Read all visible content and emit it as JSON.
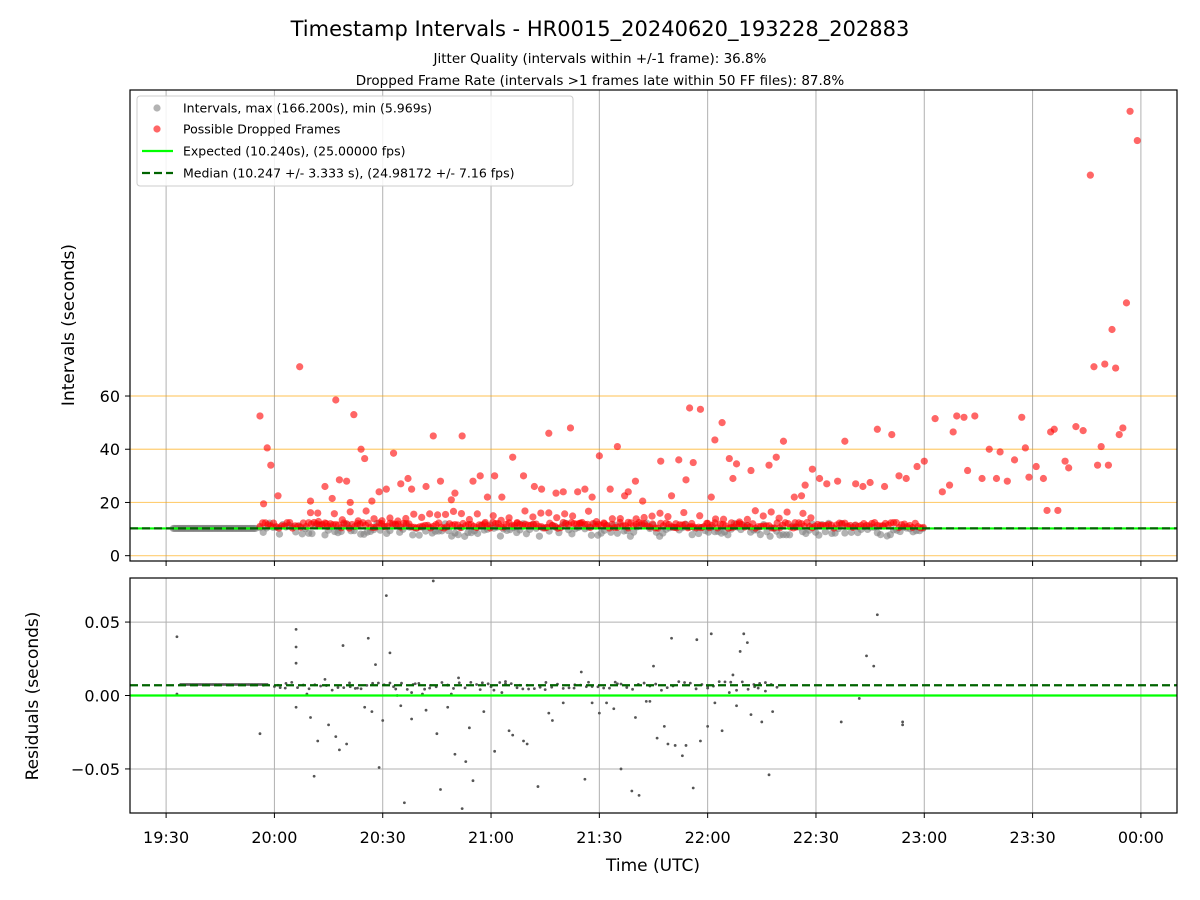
{
  "figure": {
    "title": "Timestamp Intervals - HR0015_20240620_193228_202883",
    "subtitle1": "Jitter Quality (intervals within +/-1 frame): 36.8%",
    "subtitle2": "Dropped Frame Rate (intervals >1 frames late within 50 FF files): 87.8%",
    "xlabel": "Time (UTC)"
  },
  "chart_data": [
    {
      "type": "scatter",
      "panel": "top",
      "ylabel": "Intervals (seconds)",
      "x_domain": [
        "19:20",
        "00:10"
      ],
      "ylim": [
        -2,
        175
      ],
      "yticks": [
        0,
        20,
        40,
        60
      ],
      "xticks": [
        "19:30",
        "20:00",
        "20:30",
        "21:00",
        "21:30",
        "22:00",
        "22:30",
        "23:00",
        "23:30",
        "00:00"
      ],
      "hlines": [
        0,
        20,
        40,
        60
      ],
      "grid": true,
      "legend_position": "upper-left",
      "legend": {
        "intervals": "Intervals, max (166.200s), min (5.969s)",
        "dropped": "Possible Dropped Frames",
        "expected": "Expected (10.240s), (25.00000 fps)",
        "median": "Median (10.247 +/- 3.333 s), (24.98172 +/- 7.16 fps)"
      },
      "expected_value": 10.24,
      "median_value": 10.247,
      "dropped_points": [
        [
          "19:56",
          52.5
        ],
        [
          "19:57",
          19.5
        ],
        [
          "19:58",
          40.5
        ],
        [
          "19:59",
          34
        ],
        [
          "20:01",
          22.5
        ],
        [
          "20:07",
          71
        ],
        [
          "20:10",
          20.5
        ],
        [
          "20:12",
          16
        ],
        [
          "20:14",
          26
        ],
        [
          "20:16",
          21.5
        ],
        [
          "20:17",
          58.5
        ],
        [
          "20:18",
          28.5
        ],
        [
          "20:20",
          28
        ],
        [
          "20:21",
          20
        ],
        [
          "20:22",
          53
        ],
        [
          "20:24",
          40
        ],
        [
          "20:25",
          36.5
        ],
        [
          "20:27",
          20.5
        ],
        [
          "20:29",
          24
        ],
        [
          "20:31",
          25
        ],
        [
          "20:33",
          38.5
        ],
        [
          "20:35",
          27
        ],
        [
          "20:37",
          29
        ],
        [
          "20:38",
          25
        ],
        [
          "20:42",
          26
        ],
        [
          "20:44",
          45
        ],
        [
          "20:46",
          28
        ],
        [
          "20:49",
          21
        ],
        [
          "20:50",
          23.5
        ],
        [
          "20:52",
          45
        ],
        [
          "20:55",
          28
        ],
        [
          "20:57",
          30
        ],
        [
          "20:59",
          22
        ],
        [
          "21:01",
          30
        ],
        [
          "21:03",
          22
        ],
        [
          "21:06",
          37
        ],
        [
          "21:09",
          30
        ],
        [
          "21:12",
          26
        ],
        [
          "21:14",
          25
        ],
        [
          "21:16",
          46
        ],
        [
          "21:18",
          23.5
        ],
        [
          "21:20",
          24
        ],
        [
          "21:22",
          48
        ],
        [
          "21:24",
          24
        ],
        [
          "21:26",
          25
        ],
        [
          "21:28",
          22
        ],
        [
          "21:30",
          37.5
        ],
        [
          "21:33",
          25
        ],
        [
          "21:35",
          41
        ],
        [
          "21:37",
          22.5
        ],
        [
          "21:38",
          24
        ],
        [
          "21:40",
          28
        ],
        [
          "21:42",
          20.5
        ],
        [
          "21:47",
          35.5
        ],
        [
          "21:50",
          22.5
        ],
        [
          "21:52",
          36
        ],
        [
          "21:54",
          28.5
        ],
        [
          "21:55",
          55.5
        ],
        [
          "21:56",
          35
        ],
        [
          "21:58",
          55
        ],
        [
          "22:01",
          22
        ],
        [
          "22:02",
          43.5
        ],
        [
          "22:04",
          50
        ],
        [
          "22:06",
          36.5
        ],
        [
          "22:07",
          29
        ],
        [
          "22:08",
          34.5
        ],
        [
          "22:12",
          32
        ],
        [
          "22:17",
          34
        ],
        [
          "22:19",
          37
        ],
        [
          "22:21",
          43
        ],
        [
          "22:24",
          22
        ],
        [
          "22:26",
          22.5
        ],
        [
          "22:27",
          26.5
        ],
        [
          "22:29",
          32.5
        ],
        [
          "22:31",
          29
        ],
        [
          "22:33",
          27
        ],
        [
          "22:36",
          28
        ],
        [
          "22:38",
          43
        ],
        [
          "22:41",
          27
        ],
        [
          "22:43",
          26
        ],
        [
          "22:45",
          27.5
        ],
        [
          "22:47",
          47.5
        ],
        [
          "22:49",
          26
        ],
        [
          "22:51",
          45.5
        ],
        [
          "22:53",
          30
        ],
        [
          "22:55",
          29
        ],
        [
          "22:58",
          33.5
        ],
        [
          "23:00",
          35.5
        ],
        [
          "23:03",
          51.5
        ],
        [
          "23:05",
          24
        ],
        [
          "23:07",
          26.5
        ],
        [
          "23:08",
          46.5
        ],
        [
          "23:09",
          52.5
        ],
        [
          "23:11",
          52
        ],
        [
          "23:12",
          32
        ],
        [
          "23:14",
          52.5
        ],
        [
          "23:16",
          29
        ],
        [
          "23:18",
          40
        ],
        [
          "23:20",
          29
        ],
        [
          "23:21",
          39
        ],
        [
          "23:23",
          28
        ],
        [
          "23:25",
          36
        ],
        [
          "23:27",
          52
        ],
        [
          "23:28",
          40.5
        ],
        [
          "23:29",
          29.5
        ],
        [
          "23:31",
          33.5
        ],
        [
          "23:33",
          29
        ],
        [
          "23:34",
          17
        ],
        [
          "23:35",
          46.5
        ],
        [
          "23:36",
          47.5
        ],
        [
          "23:37",
          17
        ],
        [
          "23:39",
          35.5
        ],
        [
          "23:40",
          33
        ],
        [
          "23:42",
          48.5
        ],
        [
          "23:44",
          47
        ],
        [
          "23:46",
          143
        ],
        [
          "23:47",
          71
        ],
        [
          "23:48",
          34
        ],
        [
          "23:49",
          41
        ],
        [
          "23:50",
          72
        ],
        [
          "23:51",
          34
        ],
        [
          "23:52",
          85
        ],
        [
          "23:53",
          70.5
        ],
        [
          "23:54",
          45.5
        ],
        [
          "23:55",
          48
        ],
        [
          "23:56",
          95
        ],
        [
          "23:57",
          167
        ],
        [
          "23:59",
          156
        ]
      ]
    },
    {
      "type": "scatter",
      "panel": "bottom",
      "ylabel": "Residuals (seconds)",
      "x_domain": [
        "19:20",
        "00:10"
      ],
      "ylim": [
        -0.08,
        0.08
      ],
      "yticks": [
        0.05,
        0.0,
        -0.05
      ],
      "ytick_labels": [
        "0.05",
        "0.00",
        "−0.05"
      ],
      "xticks": [
        "19:30",
        "20:00",
        "20:30",
        "21:00",
        "21:30",
        "22:00",
        "22:30",
        "23:00",
        "23:30",
        "00:00"
      ],
      "grid": true,
      "expected_value": 0.0,
      "median_value": 0.007,
      "points": [
        [
          "19:33",
          0.04
        ],
        [
          "19:33",
          0.001
        ],
        [
          "19:56",
          -0.026
        ],
        [
          "19:57",
          0.007
        ],
        [
          "20:01",
          0.007
        ],
        [
          "20:03",
          0.005
        ],
        [
          "20:06",
          0.045
        ],
        [
          "20:06",
          0.033
        ],
        [
          "20:06",
          0.022
        ],
        [
          "20:06",
          -0.008
        ],
        [
          "20:09",
          0.001
        ],
        [
          "20:10",
          -0.015
        ],
        [
          "20:11",
          -0.055
        ],
        [
          "20:12",
          -0.031
        ],
        [
          "20:14",
          0.011
        ],
        [
          "20:15",
          -0.02
        ],
        [
          "20:17",
          -0.028
        ],
        [
          "20:18",
          -0.037
        ],
        [
          "20:19",
          0.034
        ],
        [
          "20:20",
          -0.033
        ],
        [
          "20:21",
          0.006
        ],
        [
          "20:23",
          0.005
        ],
        [
          "20:25",
          -0.008
        ],
        [
          "20:26",
          0.039
        ],
        [
          "20:27",
          -0.011
        ],
        [
          "20:28",
          0.021
        ],
        [
          "20:29",
          -0.049
        ],
        [
          "20:30",
          -0.017
        ],
        [
          "20:31",
          0.068
        ],
        [
          "20:32",
          0.029
        ],
        [
          "20:34",
          0.0
        ],
        [
          "20:35",
          -0.007
        ],
        [
          "20:36",
          -0.073
        ],
        [
          "20:38",
          -0.016
        ],
        [
          "20:39",
          0.008
        ],
        [
          "20:41",
          0.001
        ],
        [
          "20:42",
          -0.01
        ],
        [
          "20:43",
          0.005
        ],
        [
          "20:44",
          0.078
        ],
        [
          "20:45",
          -0.026
        ],
        [
          "20:46",
          -0.064
        ],
        [
          "20:48",
          -0.008
        ],
        [
          "20:49",
          0.001
        ],
        [
          "20:50",
          -0.04
        ],
        [
          "20:51",
          0.012
        ],
        [
          "20:52",
          -0.077
        ],
        [
          "20:53",
          -0.045
        ],
        [
          "20:54",
          -0.022
        ],
        [
          "20:55",
          -0.058
        ],
        [
          "20:57",
          0.004
        ],
        [
          "20:58",
          -0.011
        ],
        [
          "21:00",
          0.006
        ],
        [
          "21:01",
          -0.038
        ],
        [
          "21:03",
          0.002
        ],
        [
          "21:05",
          -0.024
        ],
        [
          "21:06",
          -0.027
        ],
        [
          "21:08",
          0.007
        ],
        [
          "21:09",
          -0.031
        ],
        [
          "21:10",
          -0.033
        ],
        [
          "21:13",
          -0.062
        ],
        [
          "21:15",
          0.004
        ],
        [
          "21:16",
          -0.012
        ],
        [
          "21:17",
          -0.017
        ],
        [
          "21:20",
          -0.005
        ],
        [
          "21:23",
          0.005
        ],
        [
          "21:25",
          0.016
        ],
        [
          "21:26",
          -0.057
        ],
        [
          "21:28",
          -0.005
        ],
        [
          "21:30",
          -0.012
        ],
        [
          "21:32",
          -0.005
        ],
        [
          "21:34",
          -0.009
        ],
        [
          "21:36",
          -0.05
        ],
        [
          "21:39",
          -0.065
        ],
        [
          "21:40",
          -0.015
        ],
        [
          "21:41",
          -0.068
        ],
        [
          "21:43",
          -0.004
        ],
        [
          "21:45",
          0.02
        ],
        [
          "21:46",
          -0.029
        ],
        [
          "21:48",
          -0.021
        ],
        [
          "21:49",
          -0.033
        ],
        [
          "21:50",
          0.039
        ],
        [
          "21:51",
          -0.034
        ],
        [
          "21:53",
          -0.041
        ],
        [
          "21:54",
          -0.034
        ],
        [
          "21:56",
          -0.063
        ],
        [
          "21:57",
          0.038
        ],
        [
          "21:58",
          -0.031
        ],
        [
          "22:00",
          -0.021
        ],
        [
          "22:01",
          0.042
        ],
        [
          "22:02",
          -0.005
        ],
        [
          "22:04",
          -0.024
        ],
        [
          "22:06",
          0.002
        ],
        [
          "22:07",
          0.014
        ],
        [
          "22:08",
          -0.007
        ],
        [
          "22:09",
          0.03
        ],
        [
          "22:10",
          0.042
        ],
        [
          "22:11",
          0.036
        ],
        [
          "22:12",
          -0.013
        ],
        [
          "22:14",
          0.005
        ],
        [
          "22:15",
          -0.018
        ],
        [
          "22:17",
          -0.054
        ],
        [
          "22:18",
          -0.011
        ],
        [
          "22:37",
          -0.018
        ],
        [
          "22:42",
          -0.002
        ],
        [
          "22:44",
          0.027
        ],
        [
          "22:46",
          0.02
        ],
        [
          "22:47",
          0.055
        ],
        [
          "22:54",
          -0.018
        ],
        [
          "22:54",
          -0.02
        ],
        [
          "22:00",
          0.005
        ],
        [
          "21:44",
          -0.004
        ],
        [
          "21:10",
          0.007
        ],
        [
          "20:38",
          0.002
        ],
        [
          "21:27",
          0.009
        ],
        [
          "21:04",
          0.008
        ],
        [
          "20:48",
          0.007
        ],
        [
          "22:16",
          0.003
        ],
        [
          "20:33",
          0.006
        ],
        [
          "21:35",
          0.008
        ],
        [
          "22:13",
          0.006
        ]
      ]
    }
  ]
}
